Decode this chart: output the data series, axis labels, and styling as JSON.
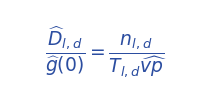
{
  "equation_left": "\\dfrac{\\widehat{D}_{\\mathregular{l,d}}}{\\widehat{g}(0)}",
  "equation_right": "\\dfrac{n_{\\mathregular{l,d}}}{T_{\\mathregular{l,d}}\\widehat{vp}}",
  "text_color": "#2b4da0",
  "background_color": "#ffffff",
  "fontsize": 13.5,
  "figwidth": 2.12,
  "figheight": 1.04,
  "dpi": 100
}
